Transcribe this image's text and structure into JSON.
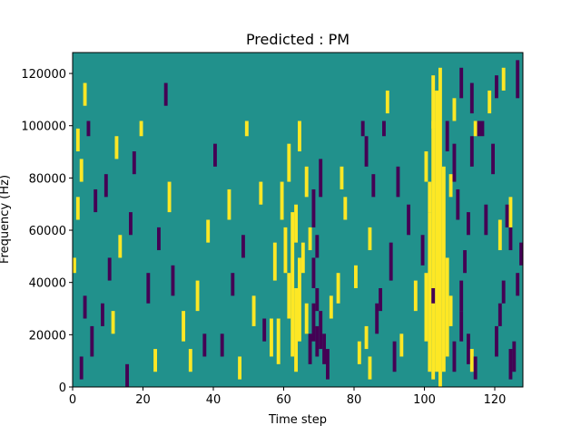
{
  "chart_data": {
    "type": "heatmap",
    "title": "Predicted : PM",
    "xlabel": "Time step",
    "ylabel": "Frequency (Hz)",
    "xlim": [
      0,
      128
    ],
    "ylim": [
      0,
      128000
    ],
    "x_ticks": [
      0,
      20,
      40,
      60,
      80,
      100,
      120
    ],
    "y_ticks": [
      0,
      20000,
      40000,
      60000,
      80000,
      100000,
      120000
    ],
    "x_tick_labels": [
      "0",
      "20",
      "40",
      "60",
      "80",
      "100",
      "120"
    ],
    "y_tick_labels": [
      "0",
      "20000",
      "40000",
      "60000",
      "80000",
      "100000",
      "120000"
    ],
    "grid": false,
    "colormap": "viridis",
    "colors": {
      "background_class": "#21918c",
      "class_high": "#fde725",
      "class_low": "#440154"
    },
    "n_time_steps": 128,
    "n_freq_bins": 44,
    "cells": [
      {
        "t": 104,
        "bins": [
          0,
          41
        ],
        "v": "high"
      },
      {
        "t": 103,
        "bins": [
          2,
          38
        ],
        "v": "high"
      },
      {
        "t": 102,
        "bins": [
          1,
          34
        ],
        "v": "high"
      },
      {
        "t": 101,
        "bins": [
          2,
          22
        ],
        "v": "high"
      },
      {
        "t": 100,
        "bins": [
          6,
          14
        ],
        "v": "high"
      },
      {
        "t": 105,
        "bins": [
          2,
          28
        ],
        "v": "high"
      },
      {
        "t": 106,
        "bins": [
          4,
          16
        ],
        "v": "high"
      },
      {
        "t": 102,
        "bins": [
          34,
          40
        ],
        "v": "high"
      },
      {
        "t": 100,
        "bins": [
          27,
          30
        ],
        "v": "high"
      },
      {
        "t": 101,
        "bins": [
          23,
          26
        ],
        "v": "high"
      },
      {
        "t": 102,
        "bins": [
          11,
          12
        ],
        "v": "low"
      },
      {
        "t": 107,
        "bins": [
          8,
          11
        ],
        "v": "high"
      },
      {
        "t": 108,
        "bins": [
          2,
          5
        ],
        "v": "low"
      },
      {
        "t": 110,
        "bins": [
          6,
          9
        ],
        "v": "low"
      },
      {
        "t": 112,
        "bins": [
          3,
          6
        ],
        "v": "low"
      },
      {
        "t": 113,
        "bins": [
          2,
          4
        ],
        "v": "high"
      },
      {
        "t": 114,
        "bins": [
          1,
          3
        ],
        "v": "low"
      },
      {
        "t": 117,
        "bins": [
          20,
          23
        ],
        "v": "low"
      },
      {
        "t": 119,
        "bins": [
          28,
          31
        ],
        "v": "low"
      },
      {
        "t": 120,
        "bins": [
          4,
          7
        ],
        "v": "low"
      },
      {
        "t": 121,
        "bins": [
          8,
          10
        ],
        "v": "low"
      },
      {
        "t": 122,
        "bins": [
          11,
          13
        ],
        "v": "low"
      },
      {
        "t": 124,
        "bins": [
          1,
          4
        ],
        "v": "low"
      },
      {
        "t": 125,
        "bins": [
          2,
          5
        ],
        "v": "low"
      },
      {
        "t": 126,
        "bins": [
          12,
          14
        ],
        "v": "low"
      },
      {
        "t": 127,
        "bins": [
          16,
          18
        ],
        "v": "low"
      },
      {
        "t": 124,
        "bins": [
          18,
          20
        ],
        "v": "low"
      },
      {
        "t": 123,
        "bins": [
          21,
          23
        ],
        "v": "low"
      },
      {
        "t": 121,
        "bins": [
          18,
          21
        ],
        "v": "high"
      },
      {
        "t": 124,
        "bins": [
          21,
          24
        ],
        "v": "high"
      },
      {
        "t": 110,
        "bins": [
          10,
          13
        ],
        "v": "low"
      },
      {
        "t": 111,
        "bins": [
          15,
          17
        ],
        "v": "low"
      },
      {
        "t": 112,
        "bins": [
          20,
          22
        ],
        "v": "low"
      },
      {
        "t": 113,
        "bins": [
          29,
          32
        ],
        "v": "low"
      },
      {
        "t": 114,
        "bins": [
          33,
          34
        ],
        "v": "high"
      },
      {
        "t": 115,
        "bins": [
          33,
          34
        ],
        "v": "low"
      },
      {
        "t": 116,
        "bins": [
          33,
          34
        ],
        "v": "low"
      },
      {
        "t": 106,
        "bins": [
          31,
          34
        ],
        "v": "low"
      },
      {
        "t": 107,
        "bins": [
          25,
          27
        ],
        "v": "high"
      },
      {
        "t": 108,
        "bins": [
          27,
          31
        ],
        "v": "low"
      },
      {
        "t": 109,
        "bins": [
          22,
          25
        ],
        "v": "low"
      },
      {
        "t": 108,
        "bins": [
          35,
          37
        ],
        "v": "high"
      },
      {
        "t": 110,
        "bins": [
          38,
          41
        ],
        "v": "low"
      },
      {
        "t": 113,
        "bins": [
          36,
          39
        ],
        "v": "low"
      },
      {
        "t": 118,
        "bins": [
          36,
          38
        ],
        "v": "high"
      },
      {
        "t": 120,
        "bins": [
          38,
          40
        ],
        "v": "low"
      },
      {
        "t": 122,
        "bins": [
          39,
          41
        ],
        "v": "high"
      },
      {
        "t": 126,
        "bins": [
          38,
          42
        ],
        "v": "low"
      },
      {
        "t": 62,
        "bins": [
          4,
          22
        ],
        "v": "high"
      },
      {
        "t": 63,
        "bins": [
          2,
          12
        ],
        "v": "high"
      },
      {
        "t": 64,
        "bins": [
          6,
          16
        ],
        "v": "high"
      },
      {
        "t": 60,
        "bins": [
          15,
          20
        ],
        "v": "high"
      },
      {
        "t": 61,
        "bins": [
          9,
          14
        ],
        "v": "high"
      },
      {
        "t": 58,
        "bins": [
          3,
          8
        ],
        "v": "high"
      },
      {
        "t": 57,
        "bins": [
          14,
          18
        ],
        "v": "high"
      },
      {
        "t": 56,
        "bins": [
          4,
          8
        ],
        "v": "high"
      },
      {
        "t": 59,
        "bins": [
          22,
          26
        ],
        "v": "high"
      },
      {
        "t": 61,
        "bins": [
          27,
          31
        ],
        "v": "high"
      },
      {
        "t": 63,
        "bins": [
          19,
          23
        ],
        "v": "high"
      },
      {
        "t": 65,
        "bins": [
          15,
          18
        ],
        "v": "high"
      },
      {
        "t": 66,
        "bins": [
          7,
          10
        ],
        "v": "high"
      },
      {
        "t": 67,
        "bins": [
          3,
          6
        ],
        "v": "low"
      },
      {
        "t": 68,
        "bins": [
          6,
          10
        ],
        "v": "low"
      },
      {
        "t": 69,
        "bins": [
          4,
          7
        ],
        "v": "low"
      },
      {
        "t": 70,
        "bins": [
          5,
          9
        ],
        "v": "low"
      },
      {
        "t": 71,
        "bins": [
          3,
          6
        ],
        "v": "low"
      },
      {
        "t": 72,
        "bins": [
          1,
          4
        ],
        "v": "low"
      },
      {
        "t": 68,
        "bins": [
          13,
          16
        ],
        "v": "low"
      },
      {
        "t": 69,
        "bins": [
          10,
          12
        ],
        "v": "low"
      },
      {
        "t": 68,
        "bins": [
          21,
          25
        ],
        "v": "low"
      },
      {
        "t": 70,
        "bins": [
          25,
          29
        ],
        "v": "low"
      },
      {
        "t": 69,
        "bins": [
          17,
          19
        ],
        "v": "low"
      },
      {
        "t": 67,
        "bins": [
          18,
          20
        ],
        "v": "high"
      },
      {
        "t": 66,
        "bins": [
          25,
          28
        ],
        "v": "high"
      },
      {
        "t": 64,
        "bins": [
          31,
          34
        ],
        "v": "high"
      },
      {
        "t": 73,
        "bins": [
          9,
          11
        ],
        "v": "high"
      },
      {
        "t": 75,
        "bins": [
          11,
          14
        ],
        "v": "high"
      },
      {
        "t": 77,
        "bins": [
          22,
          24
        ],
        "v": "high"
      },
      {
        "t": 76,
        "bins": [
          26,
          28
        ],
        "v": "high"
      },
      {
        "t": 80,
        "bins": [
          13,
          15
        ],
        "v": "high"
      },
      {
        "t": 81,
        "bins": [
          3,
          5
        ],
        "v": "high"
      },
      {
        "t": 84,
        "bins": [
          18,
          20
        ],
        "v": "high"
      },
      {
        "t": 85,
        "bins": [
          25,
          27
        ],
        "v": "low"
      },
      {
        "t": 83,
        "bins": [
          29,
          32
        ],
        "v": "low"
      },
      {
        "t": 86,
        "bins": [
          7,
          10
        ],
        "v": "low"
      },
      {
        "t": 84,
        "bins": [
          1,
          3
        ],
        "v": "high"
      },
      {
        "t": 83,
        "bins": [
          5,
          7
        ],
        "v": "high"
      },
      {
        "t": 87,
        "bins": [
          10,
          12
        ],
        "v": "low"
      },
      {
        "t": 82,
        "bins": [
          33,
          34
        ],
        "v": "low"
      },
      {
        "t": 88,
        "bins": [
          33,
          34
        ],
        "v": "low"
      },
      {
        "t": 89,
        "bins": [
          36,
          38
        ],
        "v": "high"
      },
      {
        "t": 91,
        "bins": [
          2,
          5
        ],
        "v": "low"
      },
      {
        "t": 93,
        "bins": [
          4,
          6
        ],
        "v": "high"
      },
      {
        "t": 90,
        "bins": [
          14,
          18
        ],
        "v": "low"
      },
      {
        "t": 95,
        "bins": [
          20,
          23
        ],
        "v": "low"
      },
      {
        "t": 92,
        "bins": [
          25,
          28
        ],
        "v": "low"
      },
      {
        "t": 97,
        "bins": [
          10,
          13
        ],
        "v": "high"
      },
      {
        "t": 99,
        "bins": [
          16,
          19
        ],
        "v": "low"
      },
      {
        "t": 2,
        "bins": [
          1,
          3
        ],
        "v": "low"
      },
      {
        "t": 3,
        "bins": [
          9,
          11
        ],
        "v": "low"
      },
      {
        "t": 5,
        "bins": [
          4,
          7
        ],
        "v": "low"
      },
      {
        "t": 6,
        "bins": [
          23,
          25
        ],
        "v": "low"
      },
      {
        "t": 1,
        "bins": [
          22,
          24
        ],
        "v": "high"
      },
      {
        "t": 0,
        "bins": [
          15,
          16
        ],
        "v": "high"
      },
      {
        "t": 2,
        "bins": [
          27,
          29
        ],
        "v": "high"
      },
      {
        "t": 3,
        "bins": [
          37,
          39
        ],
        "v": "high"
      },
      {
        "t": 1,
        "bins": [
          31,
          33
        ],
        "v": "high"
      },
      {
        "t": 4,
        "bins": [
          33,
          34
        ],
        "v": "low"
      },
      {
        "t": 8,
        "bins": [
          8,
          10
        ],
        "v": "low"
      },
      {
        "t": 9,
        "bins": [
          25,
          27
        ],
        "v": "low"
      },
      {
        "t": 10,
        "bins": [
          14,
          16
        ],
        "v": "low"
      },
      {
        "t": 11,
        "bins": [
          7,
          9
        ],
        "v": "high"
      },
      {
        "t": 12,
        "bins": [
          30,
          32
        ],
        "v": "high"
      },
      {
        "t": 13,
        "bins": [
          17,
          19
        ],
        "v": "high"
      },
      {
        "t": 15,
        "bins": [
          0,
          2
        ],
        "v": "low"
      },
      {
        "t": 16,
        "bins": [
          20,
          22
        ],
        "v": "low"
      },
      {
        "t": 17,
        "bins": [
          28,
          30
        ],
        "v": "low"
      },
      {
        "t": 19,
        "bins": [
          33,
          34
        ],
        "v": "high"
      },
      {
        "t": 21,
        "bins": [
          11,
          14
        ],
        "v": "low"
      },
      {
        "t": 23,
        "bins": [
          2,
          4
        ],
        "v": "high"
      },
      {
        "t": 24,
        "bins": [
          18,
          20
        ],
        "v": "low"
      },
      {
        "t": 26,
        "bins": [
          37,
          39
        ],
        "v": "low"
      },
      {
        "t": 27,
        "bins": [
          23,
          26
        ],
        "v": "high"
      },
      {
        "t": 28,
        "bins": [
          12,
          15
        ],
        "v": "low"
      },
      {
        "t": 31,
        "bins": [
          6,
          9
        ],
        "v": "high"
      },
      {
        "t": 33,
        "bins": [
          2,
          4
        ],
        "v": "high"
      },
      {
        "t": 35,
        "bins": [
          10,
          13
        ],
        "v": "high"
      },
      {
        "t": 37,
        "bins": [
          4,
          6
        ],
        "v": "low"
      },
      {
        "t": 38,
        "bins": [
          19,
          21
        ],
        "v": "high"
      },
      {
        "t": 40,
        "bins": [
          29,
          31
        ],
        "v": "low"
      },
      {
        "t": 42,
        "bins": [
          4,
          6
        ],
        "v": "low"
      },
      {
        "t": 44,
        "bins": [
          22,
          25
        ],
        "v": "high"
      },
      {
        "t": 45,
        "bins": [
          12,
          14
        ],
        "v": "low"
      },
      {
        "t": 47,
        "bins": [
          1,
          3
        ],
        "v": "high"
      },
      {
        "t": 48,
        "bins": [
          17,
          19
        ],
        "v": "low"
      },
      {
        "t": 49,
        "bins": [
          33,
          34
        ],
        "v": "high"
      },
      {
        "t": 51,
        "bins": [
          8,
          11
        ],
        "v": "high"
      },
      {
        "t": 53,
        "bins": [
          24,
          26
        ],
        "v": "high"
      },
      {
        "t": 54,
        "bins": [
          6,
          8
        ],
        "v": "low"
      }
    ]
  }
}
